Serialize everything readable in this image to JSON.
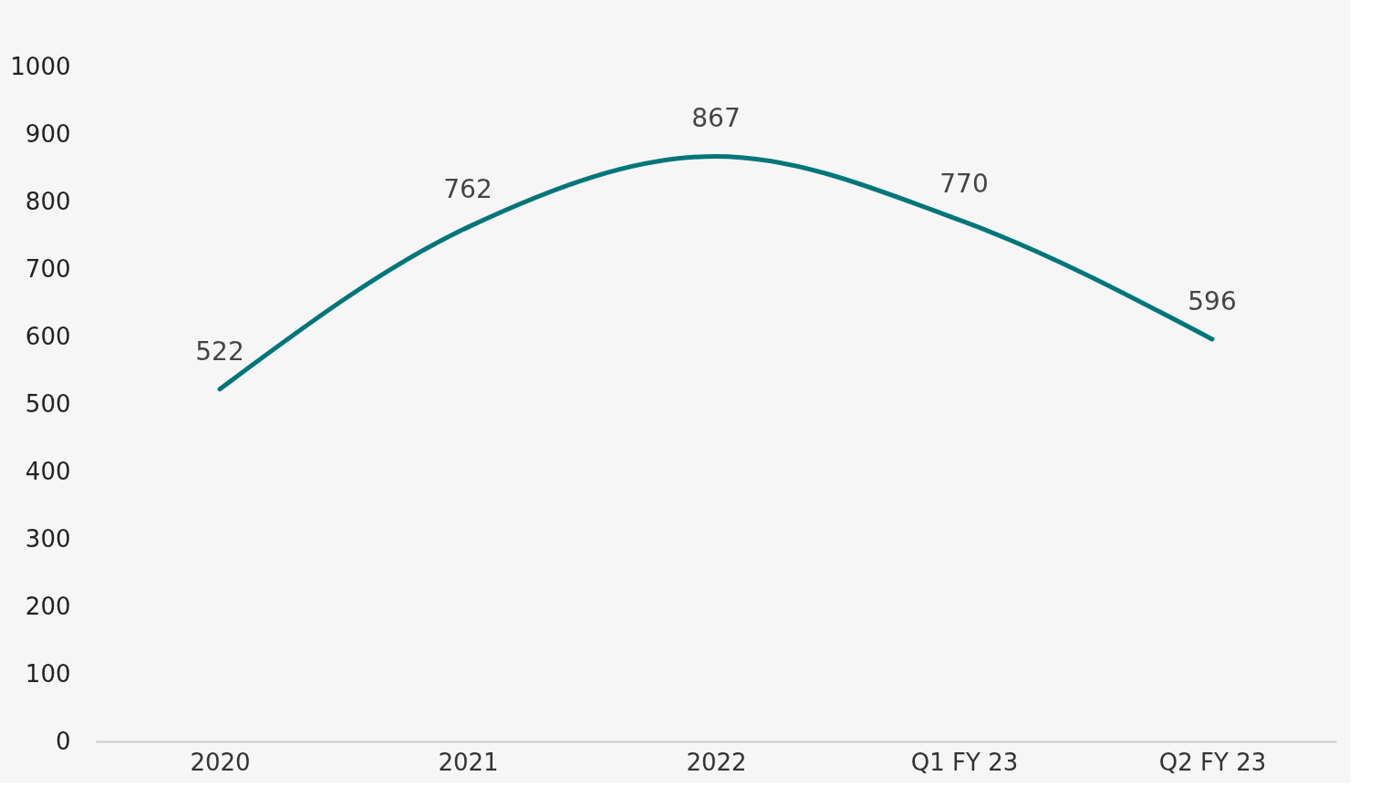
{
  "chart_data": {
    "type": "line",
    "categories": [
      "2020",
      "2021",
      "2022",
      "Q1 FY 23",
      "Q2 FY 23"
    ],
    "series": [
      {
        "color": "#00767a",
        "values": [
          522,
          762,
          867,
          770,
          596
        ]
      }
    ],
    "ylim": [
      0,
      1000
    ],
    "yticks": [
      0,
      100,
      200,
      300,
      400,
      500,
      600,
      700,
      800,
      900,
      1000
    ],
    "grid": false,
    "legend": false,
    "marker": "none",
    "line_style": "solid",
    "data_labels": true
  }
}
